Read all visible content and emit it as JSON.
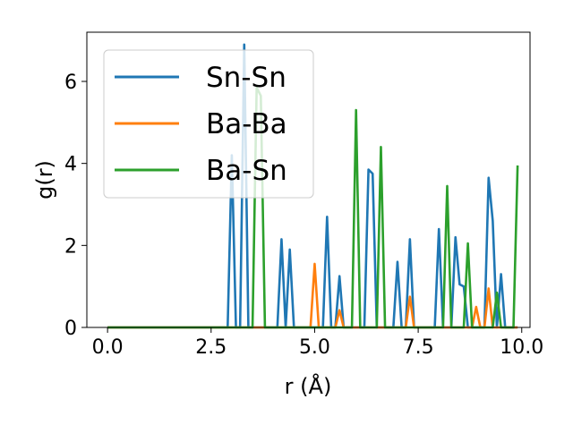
{
  "chart_data": {
    "type": "line",
    "xlabel": "r (Å)",
    "ylabel": "g(r)",
    "xlim": [
      -0.5,
      10.2
    ],
    "ylim": [
      0,
      7.2
    ],
    "xticks": [
      0.0,
      2.5,
      5.0,
      7.5,
      10.0
    ],
    "xtick_labels": [
      "0.0",
      "2.5",
      "5.0",
      "7.5",
      "10.0"
    ],
    "yticks": [
      0,
      2,
      4,
      6
    ],
    "ytick_labels": [
      "0",
      "2",
      "4",
      "6"
    ],
    "grid": false,
    "legend_position": "top-left",
    "series": [
      {
        "name": "Sn-Sn",
        "color": "#1f77b4",
        "x": [
          0,
          2.9,
          3.0,
          3.1,
          3.2,
          3.3,
          3.4,
          4.1,
          4.2,
          4.3,
          4.4,
          4.5,
          4.6,
          5.2,
          5.3,
          5.4,
          5.5,
          5.6,
          5.7,
          6.2,
          6.3,
          6.4,
          6.5,
          6.9,
          7.0,
          7.1,
          7.2,
          7.3,
          7.4,
          7.9,
          8.0,
          8.1,
          8.3,
          8.4,
          8.5,
          8.6,
          8.7,
          9.1,
          9.2,
          9.3,
          9.4,
          9.5,
          9.6,
          9.9
        ],
        "y": [
          0,
          0,
          4.2,
          0,
          0,
          6.9,
          0,
          0,
          2.15,
          0,
          1.9,
          0,
          0,
          0,
          2.7,
          0,
          0,
          1.25,
          0,
          0,
          3.85,
          3.75,
          0,
          0,
          1.6,
          0,
          0,
          2.15,
          0,
          0,
          2.4,
          0,
          0,
          2.2,
          1.05,
          1.0,
          0,
          0,
          3.65,
          2.6,
          0,
          1.3,
          0,
          0
        ]
      },
      {
        "name": "Ba-Ba",
        "color": "#ff7f0e",
        "x": [
          0,
          4.9,
          5.0,
          5.1,
          5.5,
          5.6,
          5.7,
          7.2,
          7.3,
          7.4,
          8.8,
          8.9,
          9.0,
          9.1,
          9.2,
          9.3,
          9.9
        ],
        "y": [
          0,
          0,
          1.55,
          0,
          0,
          0.42,
          0,
          0,
          0.75,
          0,
          0,
          0.5,
          0,
          0,
          0.95,
          0,
          0
        ]
      },
      {
        "name": "Ba-Sn",
        "color": "#2ca02c",
        "x": [
          0,
          3.5,
          3.6,
          3.7,
          3.8,
          5.9,
          6.0,
          6.1,
          6.5,
          6.6,
          6.7,
          8.1,
          8.2,
          8.3,
          8.6,
          8.7,
          8.8,
          9.3,
          9.4,
          9.5,
          9.8,
          9.9
        ],
        "y": [
          0,
          0,
          5.85,
          5.65,
          0,
          0,
          5.3,
          0,
          0,
          4.4,
          0,
          0,
          3.45,
          0,
          0,
          2.05,
          0,
          0,
          0.85,
          0,
          0,
          3.95
        ]
      }
    ]
  }
}
